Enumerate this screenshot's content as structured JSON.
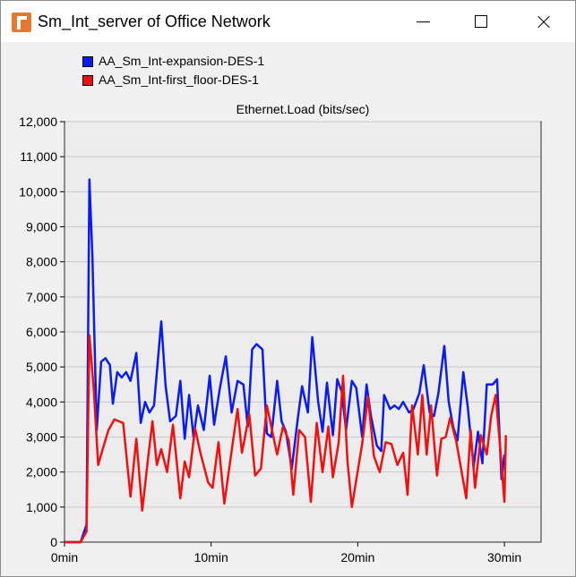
{
  "window": {
    "title": "Sm_Int_server of Office Network",
    "icon": "opnet-app-icon",
    "buttons": [
      "minimize-icon",
      "maximize-icon",
      "close-icon"
    ]
  },
  "chart_data": {
    "type": "line",
    "title": "Ethernet.Load (bits/sec)",
    "xlabel": "",
    "ylabel": "",
    "xlim": [
      0,
      32.5
    ],
    "ylim": [
      0,
      12000
    ],
    "x_ticks": [
      0,
      10,
      20,
      30
    ],
    "x_tick_labels": [
      "0min",
      "10min",
      "20min",
      "30min"
    ],
    "y_ticks": [
      0,
      1000,
      2000,
      3000,
      4000,
      5000,
      6000,
      7000,
      8000,
      9000,
      10000,
      11000,
      12000
    ],
    "y_tick_labels": [
      "0",
      "1,000",
      "2,000",
      "3,000",
      "4,000",
      "5,000",
      "6,000",
      "7,000",
      "8,000",
      "9,000",
      "10,000",
      "11,000",
      "12,000"
    ],
    "grid": true,
    "legend_position": "top-left",
    "colors": {
      "plot_background": "#ececec",
      "grid": "#c8c8c8"
    },
    "series": [
      {
        "name": "AA_Sm_Int-expansion-DES-1",
        "color": "#0a1cf0",
        "points": [
          [
            0,
            0
          ],
          [
            1.1,
            0
          ],
          [
            1.5,
            500
          ],
          [
            1.7,
            10350
          ],
          [
            1.9,
            8200
          ],
          [
            2.2,
            3200
          ],
          [
            2.5,
            5150
          ],
          [
            2.8,
            5250
          ],
          [
            3.1,
            5050
          ],
          [
            3.3,
            3950
          ],
          [
            3.6,
            4850
          ],
          [
            3.9,
            4700
          ],
          [
            4.2,
            4850
          ],
          [
            4.5,
            4600
          ],
          [
            4.9,
            5400
          ],
          [
            5.2,
            3400
          ],
          [
            5.5,
            4000
          ],
          [
            5.8,
            3700
          ],
          [
            6.1,
            3900
          ],
          [
            6.6,
            6300
          ],
          [
            6.9,
            4450
          ],
          [
            7.2,
            3450
          ],
          [
            7.6,
            3600
          ],
          [
            7.9,
            4600
          ],
          [
            8.2,
            2950
          ],
          [
            8.5,
            4200
          ],
          [
            8.8,
            3000
          ],
          [
            9.1,
            3900
          ],
          [
            9.5,
            3200
          ],
          [
            9.9,
            4750
          ],
          [
            10.2,
            3350
          ],
          [
            10.6,
            4400
          ],
          [
            11.0,
            5300
          ],
          [
            11.4,
            3700
          ],
          [
            11.8,
            4600
          ],
          [
            12.2,
            4500
          ],
          [
            12.5,
            3300
          ],
          [
            12.8,
            5500
          ],
          [
            13.1,
            5650
          ],
          [
            13.5,
            5500
          ],
          [
            13.8,
            3100
          ],
          [
            14.1,
            3000
          ],
          [
            14.5,
            4600
          ],
          [
            14.8,
            3450
          ],
          [
            15.1,
            3150
          ],
          [
            15.5,
            2100
          ],
          [
            15.9,
            3500
          ],
          [
            16.2,
            4450
          ],
          [
            16.6,
            3700
          ],
          [
            16.9,
            5850
          ],
          [
            17.3,
            4000
          ],
          [
            17.6,
            3150
          ],
          [
            17.9,
            4550
          ],
          [
            18.3,
            3050
          ],
          [
            18.6,
            4650
          ],
          [
            18.9,
            4300
          ],
          [
            19.2,
            3200
          ],
          [
            19.6,
            4600
          ],
          [
            19.9,
            4400
          ],
          [
            20.3,
            3000
          ],
          [
            20.6,
            4500
          ],
          [
            20.9,
            3600
          ],
          [
            21.3,
            2750
          ],
          [
            21.6,
            2600
          ],
          [
            21.8,
            4200
          ],
          [
            22.2,
            3800
          ],
          [
            22.5,
            3900
          ],
          [
            22.8,
            3800
          ],
          [
            23.1,
            4000
          ],
          [
            23.5,
            3700
          ],
          [
            23.8,
            3800
          ],
          [
            24.2,
            4250
          ],
          [
            24.5,
            5050
          ],
          [
            24.9,
            3700
          ],
          [
            25.2,
            3600
          ],
          [
            25.5,
            4250
          ],
          [
            25.9,
            5600
          ],
          [
            26.2,
            4000
          ],
          [
            26.5,
            3300
          ],
          [
            26.8,
            2900
          ],
          [
            27.2,
            4850
          ],
          [
            27.5,
            3850
          ],
          [
            27.9,
            2150
          ],
          [
            28.2,
            3150
          ],
          [
            28.5,
            2250
          ],
          [
            28.8,
            4500
          ],
          [
            29.2,
            4500
          ],
          [
            29.5,
            4650
          ],
          [
            29.8,
            1800
          ],
          [
            30.0,
            2500
          ]
        ]
      },
      {
        "name": "AA_Sm_Int-first_floor-DES-1",
        "color": "#f01010",
        "points": [
          [
            0,
            0
          ],
          [
            1.1,
            0
          ],
          [
            1.5,
            300
          ],
          [
            1.7,
            5900
          ],
          [
            2.0,
            4350
          ],
          [
            2.3,
            2200
          ],
          [
            2.6,
            2650
          ],
          [
            3.0,
            3200
          ],
          [
            3.4,
            3500
          ],
          [
            3.7,
            3450
          ],
          [
            4.0,
            3400
          ],
          [
            4.5,
            1300
          ],
          [
            4.9,
            2950
          ],
          [
            5.3,
            900
          ],
          [
            5.7,
            2400
          ],
          [
            6.0,
            3450
          ],
          [
            6.3,
            2200
          ],
          [
            6.6,
            2650
          ],
          [
            7.0,
            2000
          ],
          [
            7.4,
            3350
          ],
          [
            7.9,
            1250
          ],
          [
            8.2,
            2300
          ],
          [
            8.5,
            1850
          ],
          [
            8.9,
            3250
          ],
          [
            9.3,
            2500
          ],
          [
            9.8,
            1700
          ],
          [
            10.1,
            1550
          ],
          [
            10.5,
            2850
          ],
          [
            10.9,
            1100
          ],
          [
            11.5,
            2900
          ],
          [
            11.8,
            3800
          ],
          [
            12.1,
            2550
          ],
          [
            12.6,
            3650
          ],
          [
            13.0,
            1900
          ],
          [
            13.4,
            2100
          ],
          [
            13.8,
            3900
          ],
          [
            14.1,
            3300
          ],
          [
            14.5,
            2500
          ],
          [
            14.9,
            3300
          ],
          [
            15.3,
            2900
          ],
          [
            15.6,
            1350
          ],
          [
            16.0,
            3200
          ],
          [
            16.4,
            3000
          ],
          [
            16.8,
            1150
          ],
          [
            17.2,
            3400
          ],
          [
            17.6,
            2000
          ],
          [
            18.0,
            3300
          ],
          [
            18.3,
            1850
          ],
          [
            18.7,
            2850
          ],
          [
            19.0,
            4750
          ],
          [
            19.3,
            2300
          ],
          [
            19.6,
            1000
          ],
          [
            20.3,
            2800
          ],
          [
            20.7,
            4150
          ],
          [
            21.1,
            2450
          ],
          [
            21.5,
            2000
          ],
          [
            21.9,
            2850
          ],
          [
            22.3,
            2800
          ],
          [
            22.7,
            2200
          ],
          [
            23.1,
            2550
          ],
          [
            23.4,
            1350
          ],
          [
            23.7,
            3900
          ],
          [
            24.1,
            2500
          ],
          [
            24.4,
            4200
          ],
          [
            24.7,
            2500
          ],
          [
            25.0,
            3900
          ],
          [
            25.4,
            1900
          ],
          [
            25.7,
            2950
          ],
          [
            26.0,
            3000
          ],
          [
            26.3,
            3550
          ],
          [
            26.7,
            2900
          ],
          [
            27.0,
            2200
          ],
          [
            27.4,
            1250
          ],
          [
            27.7,
            3200
          ],
          [
            28.0,
            1550
          ],
          [
            28.4,
            3050
          ],
          [
            28.8,
            2500
          ],
          [
            29.1,
            3600
          ],
          [
            29.4,
            4200
          ],
          [
            29.7,
            2750
          ],
          [
            30.0,
            1150
          ],
          [
            30.1,
            3050
          ]
        ]
      }
    ]
  }
}
